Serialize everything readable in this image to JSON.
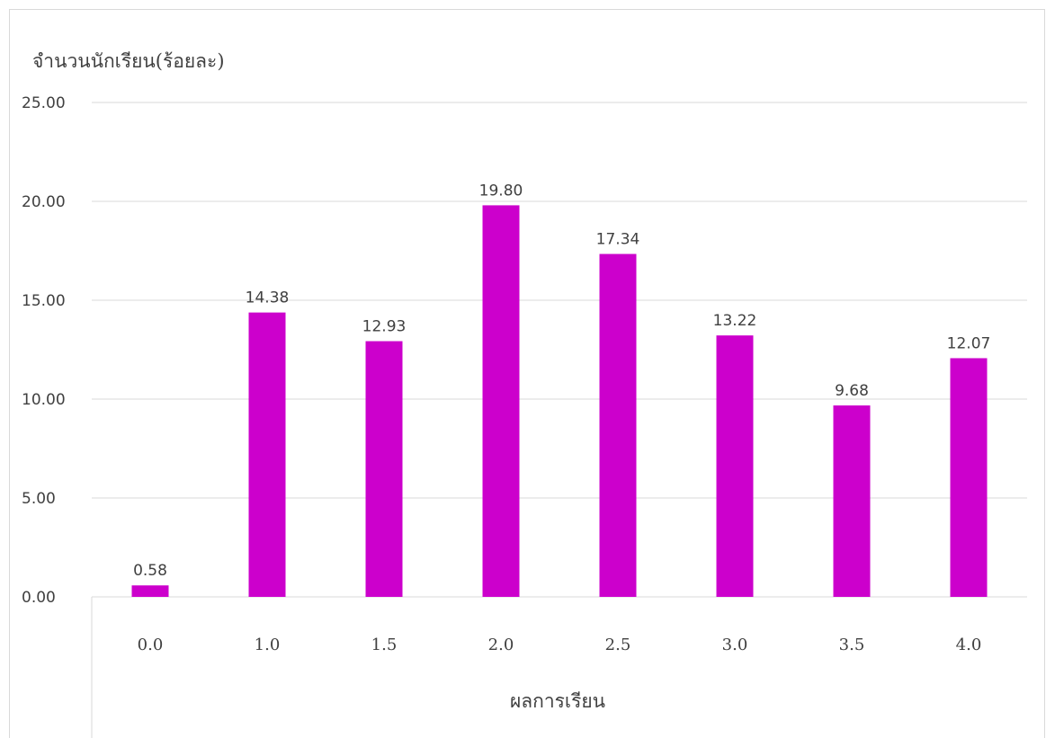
{
  "chart_data": {
    "type": "bar",
    "categories": [
      "0.0",
      "1.0",
      "1.5",
      "2.0",
      "2.5",
      "3.0",
      "3.5",
      "4.0"
    ],
    "values": [
      0.58,
      14.38,
      12.93,
      19.8,
      17.34,
      13.22,
      9.68,
      12.07
    ],
    "data_labels": [
      "0.58",
      "14.38",
      "12.93",
      "19.80",
      "17.34",
      "13.22",
      "9.68",
      "12.07"
    ],
    "title": "",
    "ylabel": "จำนวนนักเรียน(ร้อยละ)",
    "xlabel": "ผลการเรียน",
    "ylim": [
      0,
      25
    ],
    "yticks": [
      "0.00",
      "5.00",
      "10.00",
      "15.00",
      "20.00",
      "25.00"
    ],
    "grid": true,
    "legend": "none",
    "bar_color": "#CC00CC"
  }
}
